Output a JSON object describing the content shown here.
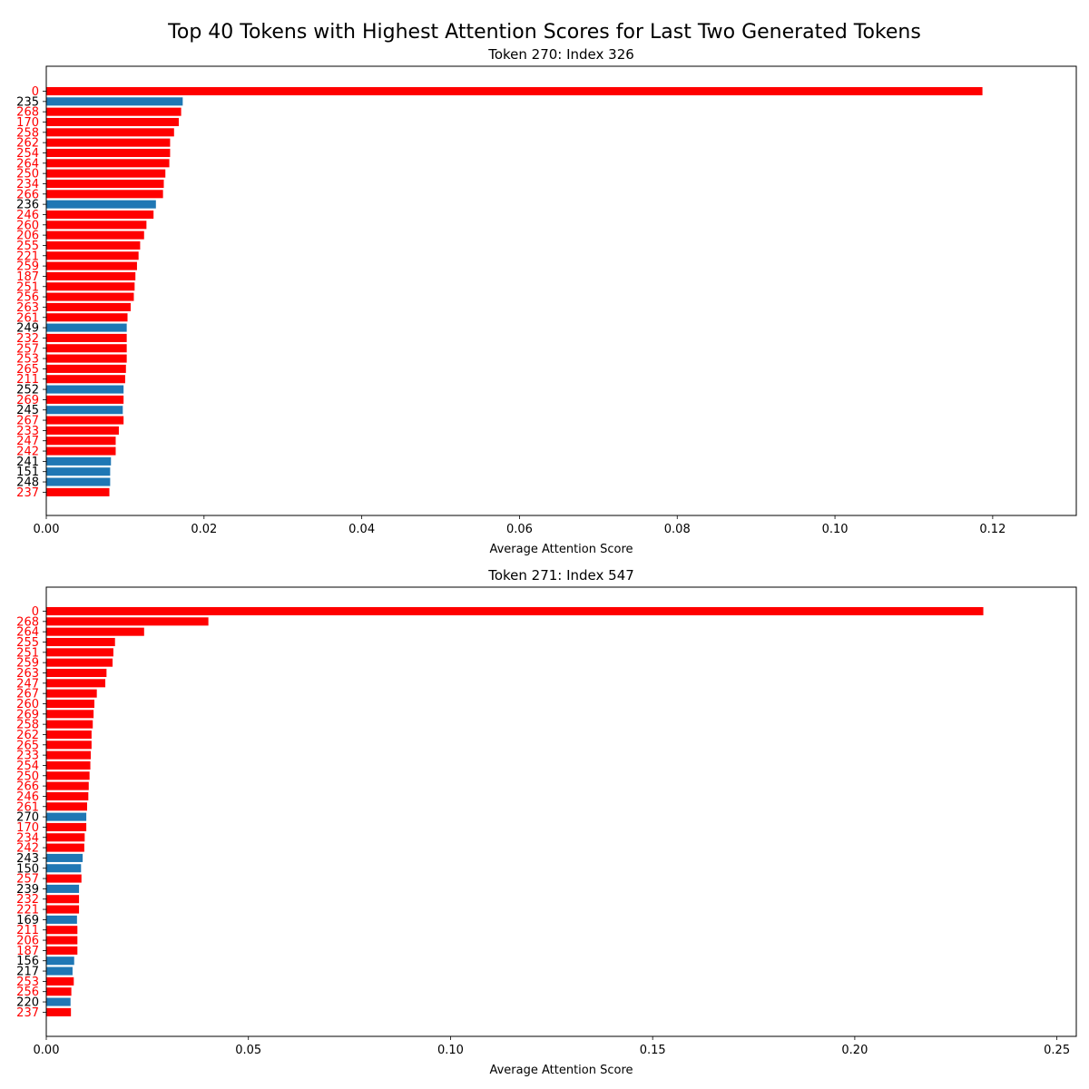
{
  "figure_title": "Top 40 Tokens with Highest Attention Scores for Last Two Generated Tokens",
  "colors": {
    "highlight": "#ff0000",
    "default": "#1f77b4",
    "default_label": "#000000"
  },
  "chart_data": [
    {
      "type": "bar",
      "orientation": "horizontal",
      "title": "Token 270: Index 326",
      "xlabel": "Average Attention Score",
      "ylabel": "",
      "xlim": [
        0,
        0.1306
      ],
      "xticks": [
        0.0,
        0.02,
        0.04,
        0.06,
        0.08,
        0.1,
        0.12
      ],
      "xtick_labels": [
        "0.00",
        "0.02",
        "0.04",
        "0.06",
        "0.08",
        "0.10",
        "0.12"
      ],
      "grid": false,
      "categories": [
        "0",
        "235",
        "268",
        "170",
        "258",
        "262",
        "254",
        "264",
        "250",
        "234",
        "266",
        "236",
        "246",
        "260",
        "206",
        "255",
        "221",
        "259",
        "187",
        "251",
        "256",
        "263",
        "261",
        "249",
        "232",
        "257",
        "253",
        "265",
        "211",
        "252",
        "269",
        "245",
        "267",
        "233",
        "247",
        "242",
        "241",
        "151",
        "248",
        "237"
      ],
      "values": [
        0.1187,
        0.0173,
        0.0171,
        0.0168,
        0.0162,
        0.0157,
        0.0157,
        0.0156,
        0.0151,
        0.0149,
        0.0148,
        0.0139,
        0.0136,
        0.0127,
        0.0124,
        0.0119,
        0.0117,
        0.0115,
        0.0113,
        0.0112,
        0.0111,
        0.0107,
        0.0103,
        0.0102,
        0.0102,
        0.0102,
        0.0102,
        0.0101,
        0.01,
        0.0098,
        0.0098,
        0.0097,
        0.0098,
        0.0092,
        0.0088,
        0.0088,
        0.0082,
        0.0081,
        0.0081,
        0.008
      ],
      "highlighted": [
        true,
        false,
        true,
        true,
        true,
        true,
        true,
        true,
        true,
        true,
        true,
        false,
        true,
        true,
        true,
        true,
        true,
        true,
        true,
        true,
        true,
        true,
        true,
        false,
        true,
        true,
        true,
        true,
        true,
        false,
        true,
        false,
        true,
        true,
        true,
        true,
        false,
        false,
        false,
        true
      ]
    },
    {
      "type": "bar",
      "orientation": "horizontal",
      "title": "Token 271: Index 547",
      "xlabel": "Average Attention Score",
      "ylabel": "",
      "xlim": [
        0,
        0.2548
      ],
      "xticks": [
        0.0,
        0.05,
        0.1,
        0.15,
        0.2,
        0.25
      ],
      "xtick_labels": [
        "0.00",
        "0.05",
        "0.10",
        "0.15",
        "0.20",
        "0.25"
      ],
      "grid": false,
      "categories": [
        "0",
        "268",
        "264",
        "255",
        "251",
        "259",
        "263",
        "247",
        "267",
        "260",
        "269",
        "258",
        "262",
        "265",
        "233",
        "254",
        "250",
        "266",
        "246",
        "261",
        "270",
        "170",
        "234",
        "242",
        "243",
        "150",
        "257",
        "239",
        "232",
        "221",
        "169",
        "211",
        "206",
        "187",
        "156",
        "217",
        "253",
        "256",
        "220",
        "237"
      ],
      "values": [
        0.2318,
        0.0401,
        0.0242,
        0.017,
        0.0166,
        0.0164,
        0.0149,
        0.0146,
        0.0125,
        0.0119,
        0.0117,
        0.0115,
        0.0112,
        0.0112,
        0.011,
        0.0109,
        0.0107,
        0.0105,
        0.0104,
        0.0101,
        0.0099,
        0.0099,
        0.0095,
        0.0094,
        0.009,
        0.0086,
        0.0087,
        0.0081,
        0.0081,
        0.0081,
        0.0076,
        0.0077,
        0.0077,
        0.0077,
        0.0069,
        0.0065,
        0.0068,
        0.0062,
        0.006,
        0.0061
      ],
      "highlighted": [
        true,
        true,
        true,
        true,
        true,
        true,
        true,
        true,
        true,
        true,
        true,
        true,
        true,
        true,
        true,
        true,
        true,
        true,
        true,
        true,
        false,
        true,
        true,
        true,
        false,
        false,
        true,
        false,
        true,
        true,
        false,
        true,
        true,
        true,
        false,
        false,
        true,
        true,
        false,
        true
      ]
    }
  ]
}
